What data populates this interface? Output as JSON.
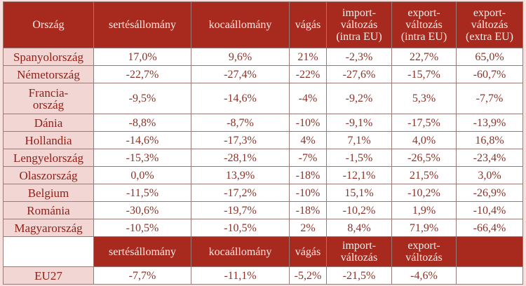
{
  "header": {
    "columns": [
      "Ország",
      "sertésállomány",
      "kocaállomány",
      "vágás",
      "import-\nváltozás\n(intra EU)",
      "export-\nváltozás\n(intra EU)",
      "export-\nváltozás\n(extra EU)"
    ]
  },
  "rows": [
    {
      "country": "Spanyolország",
      "values": [
        "17,0%",
        "9,6%",
        "21%",
        "-2,3%",
        "22,7%",
        "65,0%"
      ]
    },
    {
      "country": "Németország",
      "values": [
        "-22,7%",
        "-27,4%",
        "-22%",
        "-27,6%",
        "-15,7%",
        "-60,7%"
      ]
    },
    {
      "country": "Francia-\nország",
      "values": [
        "-9,5%",
        "-14,6%",
        "-4%",
        "-9,2%",
        "5,3%",
        "-7,7%"
      ]
    },
    {
      "country": "Dánia",
      "values": [
        "-8,8%",
        "-8,7%",
        "-10%",
        "-9,1%",
        "-17,5%",
        "-13,9%"
      ]
    },
    {
      "country": "Hollandia",
      "values": [
        "-14,6%",
        "-17,3%",
        "4%",
        "7,1%",
        "4,0%",
        "16,8%"
      ]
    },
    {
      "country": "Lengyelország",
      "values": [
        "-15,3%",
        "-28,1%",
        "-7%",
        "-1,5%",
        "-26,5%",
        "-23,4%"
      ]
    },
    {
      "country": "Olaszország",
      "values": [
        "0,0%",
        "13,9%",
        "-18%",
        "-12,1%",
        "21,5%",
        "3,0%"
      ]
    },
    {
      "country": "Belgium",
      "values": [
        "-11,5%",
        "-17,2%",
        "-10%",
        "15,1%",
        "-10,2%",
        "-26,9%"
      ]
    },
    {
      "country": "Románia",
      "values": [
        "-30,6%",
        "-19,7%",
        "-18%",
        "-10,2%",
        "1,9%",
        "-10,4%"
      ]
    },
    {
      "country": "Magyarország",
      "values": [
        "-10,5%",
        "-10,5%",
        "2%",
        "8,4%",
        "71,9%",
        "-66,4%"
      ]
    }
  ],
  "eu_header": {
    "columns": [
      "sertésállomány",
      "kocaállomány",
      "vágás",
      "import-\nváltozás",
      "export-\nváltozás"
    ]
  },
  "eu_row": {
    "country": "EU27",
    "values": [
      "-7,7%",
      "-11,1%",
      "-5,2%",
      "-21,5%",
      "-4,6%"
    ]
  },
  "colors": {
    "header_bg": "#a8291d",
    "country_bg": "#f2d6d4",
    "text": "#8a3328",
    "page_bg": "#f7e1df"
  }
}
